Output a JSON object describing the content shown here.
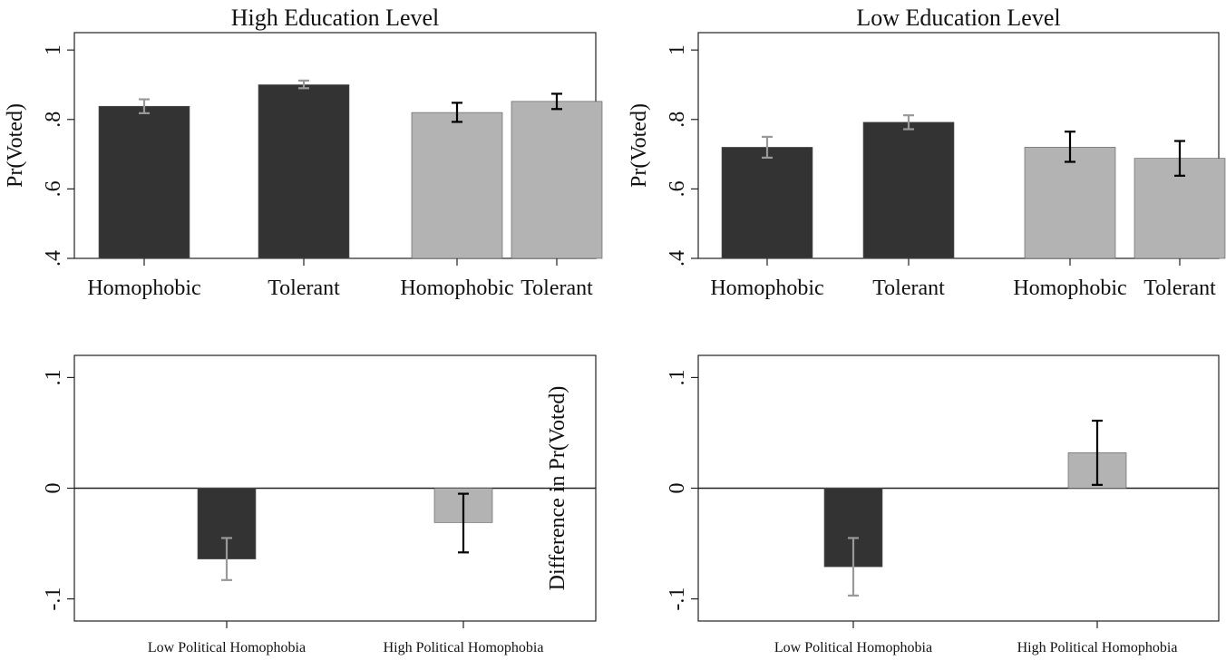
{
  "figure": {
    "colors": {
      "dark": "#333333",
      "light": "#b3b3b3",
      "axis": "#222222",
      "ci_dark_bar": "#999999",
      "ci_light_bar": "#000000"
    }
  },
  "chart_data": [
    {
      "type": "bar",
      "panel": "top-left",
      "title": "High Education Level",
      "ylabel": "Pr(Voted)",
      "xlabel": "",
      "ylim": [
        0.4,
        1.05
      ],
      "baseline": 0.4,
      "yticks": [
        0.4,
        0.6,
        0.8,
        1.0
      ],
      "ytick_labels": [
        ".4",
        ".6",
        ".8",
        "1"
      ],
      "categories": [
        "Homophobic",
        "Tolerant",
        "Homophobic",
        "Tolerant"
      ],
      "values": [
        0.838,
        0.9,
        0.82,
        0.852
      ],
      "ci_low": [
        0.818,
        0.89,
        0.793,
        0.83
      ],
      "ci_high": [
        0.858,
        0.912,
        0.848,
        0.874
      ],
      "bar_shade": [
        "dark",
        "dark",
        "light",
        "light"
      ],
      "grid": false
    },
    {
      "type": "bar",
      "panel": "top-right",
      "title": "Low Education Level",
      "ylabel": "Pr(Voted)",
      "xlabel": "",
      "ylim": [
        0.4,
        1.05
      ],
      "baseline": 0.4,
      "yticks": [
        0.4,
        0.6,
        0.8,
        1.0
      ],
      "ytick_labels": [
        ".4",
        ".6",
        ".8",
        "1"
      ],
      "categories": [
        "Homophobic",
        "Tolerant",
        "Homophobic",
        "Tolerant"
      ],
      "values": [
        0.72,
        0.792,
        0.72,
        0.688
      ],
      "ci_low": [
        0.69,
        0.772,
        0.678,
        0.638
      ],
      "ci_high": [
        0.75,
        0.812,
        0.765,
        0.738
      ],
      "bar_shade": [
        "dark",
        "dark",
        "light",
        "light"
      ],
      "grid": false
    },
    {
      "type": "bar",
      "panel": "bottom-left",
      "title": "",
      "ylabel": "",
      "xlabel": "",
      "ylim": [
        -0.12,
        0.12
      ],
      "baseline": 0,
      "zero_line": true,
      "yticks": [
        -0.1,
        0,
        0.1
      ],
      "ytick_labels": [
        "-.1",
        "0",
        ".1"
      ],
      "categories": [
        "Low Political Homophobia",
        "High Political Homophobia"
      ],
      "values": [
        -0.064,
        -0.031
      ],
      "ci_low": [
        -0.083,
        -0.058
      ],
      "ci_high": [
        -0.045,
        -0.005
      ],
      "bar_shade": [
        "dark",
        "light"
      ],
      "grid": false
    },
    {
      "type": "bar",
      "panel": "bottom-right",
      "title": "",
      "ylabel": "Difference in Pr(Voted)",
      "xlabel": "",
      "ylim": [
        -0.12,
        0.12
      ],
      "baseline": 0,
      "zero_line": true,
      "yticks": [
        -0.1,
        0,
        0.1
      ],
      "ytick_labels": [
        "-.1",
        "0",
        ".1"
      ],
      "categories": [
        "Low Political Homophobia",
        "High Political Homophobia"
      ],
      "values": [
        -0.071,
        0.032
      ],
      "ci_low": [
        -0.097,
        0.003
      ],
      "ci_high": [
        -0.045,
        0.061
      ],
      "bar_shade": [
        "dark",
        "light"
      ],
      "grid": false
    }
  ]
}
